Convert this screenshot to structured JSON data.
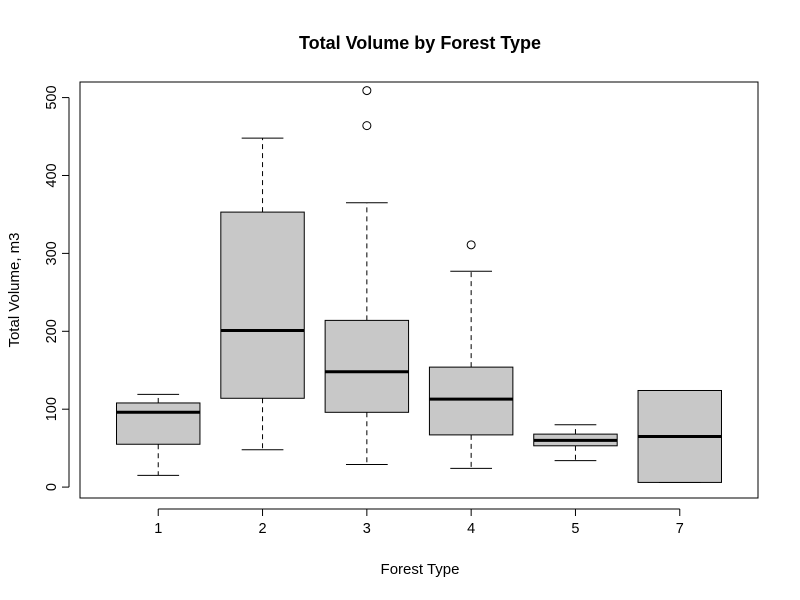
{
  "chart_data": {
    "type": "box",
    "title": "Total Volume by Forest Type",
    "xlabel": "Forest Type",
    "ylabel": "Total Volume, m3",
    "ylim": [
      -14,
      520
    ],
    "y_ticks": [
      0,
      100,
      200,
      300,
      400,
      500
    ],
    "colors": {
      "box_fill": "#c8c8c8",
      "stroke": "#000000"
    },
    "categories": [
      "1",
      "2",
      "3",
      "4",
      "5",
      "7"
    ],
    "boxes": [
      {
        "category": "1",
        "whisker_low": 15,
        "q1": 55,
        "median": 96,
        "q3": 108,
        "whisker_high": 119,
        "outliers": []
      },
      {
        "category": "2",
        "whisker_low": 48,
        "q1": 114,
        "median": 201,
        "q3": 353,
        "whisker_high": 448,
        "outliers": []
      },
      {
        "category": "3",
        "whisker_low": 29,
        "q1": 96,
        "median": 148,
        "q3": 214,
        "whisker_high": 365,
        "outliers": [
          464,
          509
        ]
      },
      {
        "category": "4",
        "whisker_low": 24,
        "q1": 67,
        "median": 113,
        "q3": 154,
        "whisker_high": 277,
        "outliers": [
          311
        ]
      },
      {
        "category": "5",
        "whisker_low": 34,
        "q1": 53,
        "median": 60,
        "q3": 68,
        "whisker_high": 80,
        "outliers": []
      },
      {
        "category": "7",
        "whisker_low": 6,
        "q1": 6,
        "median": 65,
        "q3": 124,
        "whisker_high": 124,
        "outliers": []
      }
    ]
  }
}
